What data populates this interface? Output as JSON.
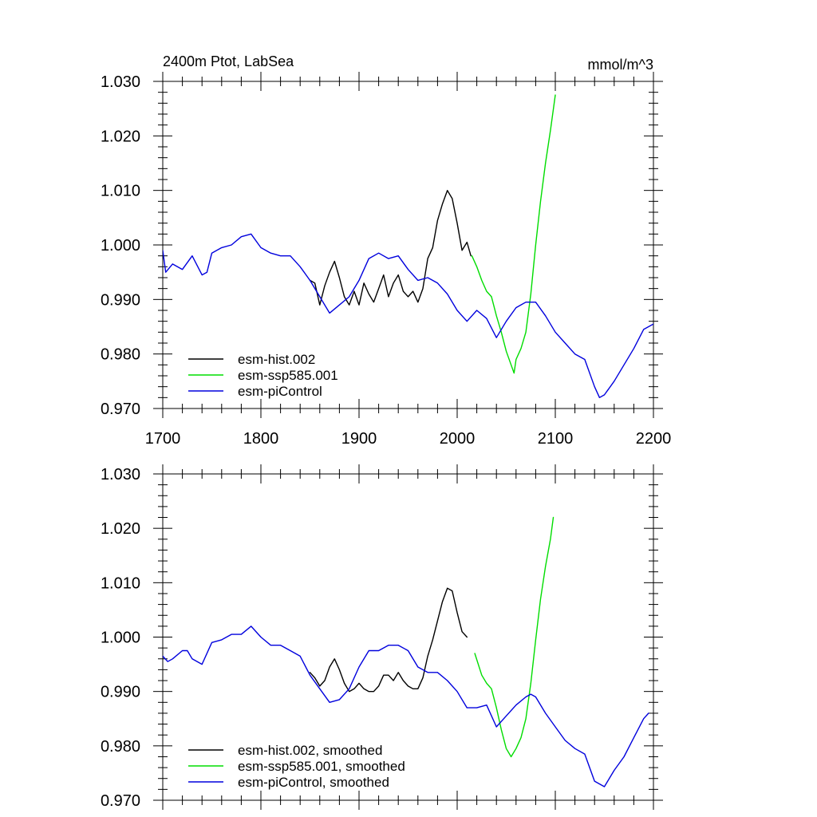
{
  "figure": {
    "title_left": "2400m Ptot, LabSea",
    "title_right": "mmol/m^3"
  },
  "chart_data": [
    {
      "type": "line",
      "title": "2400m Ptot, LabSea",
      "units": "mmol/m^3",
      "xlim": [
        1700,
        2200
      ],
      "ylim": [
        0.97,
        1.03
      ],
      "xticks": [
        1700,
        1800,
        1900,
        2000,
        2100,
        2200
      ],
      "xtick_labels": [
        "1700",
        "1800",
        "1900",
        "2000",
        "2100",
        "2200"
      ],
      "yticks": [
        0.97,
        0.98,
        0.99,
        1.0,
        1.01,
        1.02,
        1.03
      ],
      "ytick_labels": [
        "0.970",
        "0.980",
        "0.990",
        "1.000",
        "1.010",
        "1.020",
        "1.030"
      ],
      "legend_position": "bottom-left",
      "series": [
        {
          "name": "esm-hist.002",
          "color": "#000000",
          "x": [
            1850,
            1855,
            1860,
            1865,
            1870,
            1875,
            1880,
            1885,
            1890,
            1895,
            1900,
            1905,
            1910,
            1915,
            1920,
            1925,
            1930,
            1935,
            1940,
            1945,
            1950,
            1955,
            1960,
            1965,
            1970,
            1975,
            1980,
            1985,
            1990,
            1995,
            2000,
            2005,
            2010,
            2014
          ],
          "y": [
            0.9935,
            0.993,
            0.989,
            0.9925,
            0.995,
            0.997,
            0.994,
            0.9905,
            0.989,
            0.9915,
            0.989,
            0.993,
            0.991,
            0.9895,
            0.992,
            0.9945,
            0.9905,
            0.993,
            0.9945,
            0.9915,
            0.9905,
            0.9915,
            0.9895,
            0.992,
            0.9975,
            0.9995,
            1.0045,
            1.0075,
            1.01,
            1.0085,
            1.004,
            0.999,
            1.0005,
            0.998
          ]
        },
        {
          "name": "esm-ssp585.001",
          "color": "#00dd00",
          "x": [
            2015,
            2020,
            2025,
            2030,
            2035,
            2040,
            2045,
            2050,
            2055,
            2058,
            2060,
            2065,
            2070,
            2075,
            2080,
            2085,
            2090,
            2095,
            2100
          ],
          "y": [
            0.998,
            0.996,
            0.9935,
            0.9915,
            0.9905,
            0.987,
            0.984,
            0.9805,
            0.978,
            0.9765,
            0.979,
            0.981,
            0.984,
            0.991,
            1.0,
            1.008,
            1.015,
            1.021,
            1.0275
          ]
        },
        {
          "name": "esm-piControl",
          "color": "#0000dd",
          "x": [
            1700,
            1703,
            1710,
            1720,
            1730,
            1740,
            1745,
            1750,
            1760,
            1770,
            1780,
            1790,
            1800,
            1810,
            1820,
            1830,
            1840,
            1850,
            1860,
            1870,
            1880,
            1890,
            1900,
            1910,
            1920,
            1930,
            1940,
            1950,
            1960,
            1970,
            1980,
            1990,
            2000,
            2010,
            2020,
            2030,
            2040,
            2050,
            2060,
            2070,
            2080,
            2090,
            2100,
            2110,
            2120,
            2130,
            2140,
            2145,
            2150,
            2160,
            2170,
            2180,
            2190,
            2200
          ],
          "y": [
            0.999,
            0.995,
            0.9965,
            0.9955,
            0.998,
            0.9945,
            0.995,
            0.9985,
            0.9995,
            1.0,
            1.0015,
            1.002,
            0.9995,
            0.9985,
            0.998,
            0.998,
            0.996,
            0.9935,
            0.9905,
            0.9875,
            0.989,
            0.9905,
            0.9935,
            0.9975,
            0.9985,
            0.9975,
            0.998,
            0.9955,
            0.9935,
            0.994,
            0.993,
            0.991,
            0.988,
            0.986,
            0.988,
            0.9865,
            0.983,
            0.986,
            0.9885,
            0.9895,
            0.9895,
            0.987,
            0.984,
            0.982,
            0.98,
            0.979,
            0.974,
            0.972,
            0.9725,
            0.975,
            0.978,
            0.981,
            0.9845,
            0.9855
          ]
        }
      ]
    },
    {
      "type": "line",
      "title": "",
      "xlim": [
        1700,
        2200
      ],
      "ylim": [
        0.97,
        1.03
      ],
      "xticks": [
        1700,
        1800,
        1900,
        2000,
        2100,
        2200
      ],
      "yticks": [
        0.97,
        0.98,
        0.99,
        1.0,
        1.01,
        1.02,
        1.03
      ],
      "ytick_labels": [
        "0.970",
        "0.980",
        "0.990",
        "1.000",
        "1.010",
        "1.020",
        "1.030"
      ],
      "legend_position": "bottom-left",
      "series": [
        {
          "name": "esm-hist.002, smoothed",
          "color": "#000000",
          "x": [
            1850,
            1855,
            1860,
            1865,
            1870,
            1875,
            1880,
            1885,
            1890,
            1895,
            1900,
            1905,
            1910,
            1915,
            1920,
            1925,
            1930,
            1935,
            1940,
            1945,
            1950,
            1955,
            1960,
            1965,
            1970,
            1975,
            1980,
            1985,
            1990,
            1995,
            2000,
            2005,
            2010
          ],
          "y": [
            0.9935,
            0.9925,
            0.991,
            0.992,
            0.9945,
            0.996,
            0.994,
            0.9915,
            0.99,
            0.9905,
            0.9915,
            0.9905,
            0.99,
            0.99,
            0.991,
            0.993,
            0.993,
            0.992,
            0.9935,
            0.992,
            0.991,
            0.9905,
            0.9905,
            0.9925,
            0.9965,
            0.9995,
            1.003,
            1.0065,
            1.009,
            1.0085,
            1.0045,
            1.001,
            1.0
          ]
        },
        {
          "name": "esm-ssp585.001, smoothed",
          "color": "#00dd00",
          "x": [
            2018,
            2025,
            2030,
            2035,
            2040,
            2045,
            2050,
            2055,
            2060,
            2065,
            2070,
            2075,
            2080,
            2085,
            2090,
            2095,
            2098
          ],
          "y": [
            0.997,
            0.993,
            0.9915,
            0.9905,
            0.987,
            0.983,
            0.9795,
            0.978,
            0.9795,
            0.9815,
            0.985,
            0.9915,
            0.9995,
            1.007,
            1.013,
            1.018,
            1.022
          ]
        },
        {
          "name": "esm-piControl, smoothed",
          "color": "#0000dd",
          "x": [
            1700,
            1705,
            1710,
            1720,
            1725,
            1730,
            1740,
            1750,
            1760,
            1770,
            1780,
            1790,
            1800,
            1810,
            1820,
            1830,
            1840,
            1850,
            1860,
            1870,
            1880,
            1890,
            1900,
            1910,
            1920,
            1930,
            1940,
            1950,
            1960,
            1970,
            1980,
            1990,
            2000,
            2010,
            2020,
            2030,
            2040,
            2050,
            2060,
            2070,
            2075,
            2080,
            2090,
            2100,
            2110,
            2120,
            2130,
            2140,
            2150,
            2160,
            2170,
            2180,
            2190,
            2195
          ],
          "y": [
            0.9965,
            0.9955,
            0.996,
            0.9975,
            0.9975,
            0.996,
            0.995,
            0.999,
            0.9995,
            1.0005,
            1.0005,
            1.002,
            1.0,
            0.9985,
            0.9985,
            0.9975,
            0.9965,
            0.993,
            0.9905,
            0.988,
            0.9885,
            0.9905,
            0.9945,
            0.9975,
            0.9975,
            0.9985,
            0.9985,
            0.9975,
            0.9945,
            0.9935,
            0.9935,
            0.992,
            0.99,
            0.987,
            0.987,
            0.9875,
            0.9835,
            0.9855,
            0.9875,
            0.989,
            0.9895,
            0.989,
            0.986,
            0.9835,
            0.981,
            0.9795,
            0.9785,
            0.9735,
            0.9725,
            0.9755,
            0.978,
            0.9815,
            0.985,
            0.986
          ]
        }
      ]
    }
  ]
}
